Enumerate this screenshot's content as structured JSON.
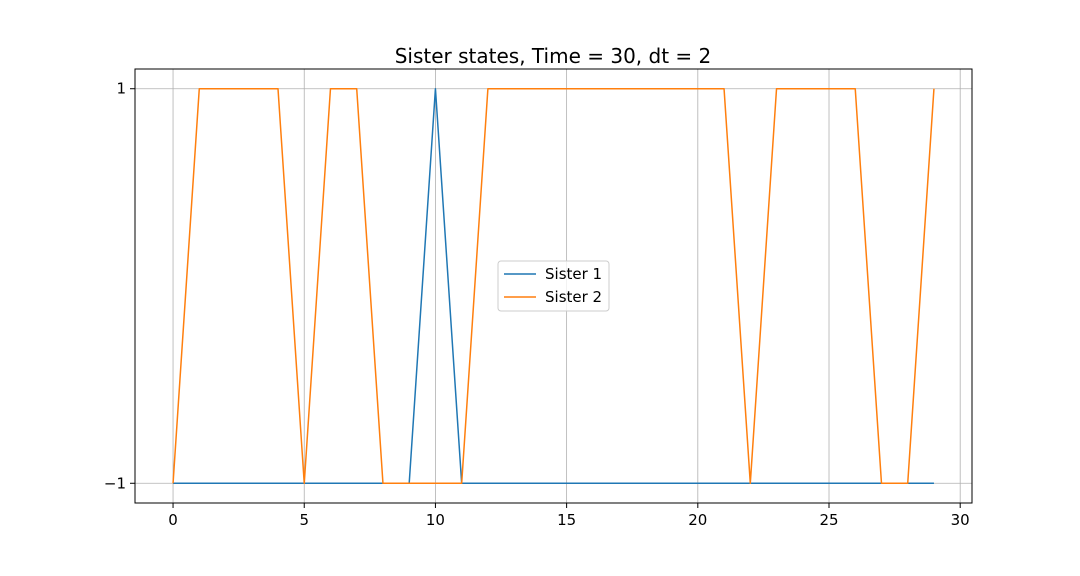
{
  "chart_data": {
    "type": "line",
    "title": "Sister states, Time = 30, dt = 2",
    "xlabel": "",
    "ylabel": "",
    "xlim": [
      -1.45,
      30.45
    ],
    "ylim": [
      -1.1,
      1.1
    ],
    "x_ticks": [
      0,
      5,
      10,
      15,
      20,
      25,
      30
    ],
    "x_tick_labels": [
      "0",
      "5",
      "10",
      "15",
      "20",
      "25",
      "30"
    ],
    "y_ticks": [
      -1,
      1
    ],
    "y_tick_labels": [
      "−1",
      "1"
    ],
    "grid": true,
    "legend_position": "center",
    "x": [
      0,
      1,
      2,
      3,
      4,
      5,
      6,
      7,
      8,
      9,
      10,
      11,
      12,
      13,
      14,
      15,
      16,
      17,
      18,
      19,
      20,
      21,
      22,
      23,
      24,
      25,
      26,
      27,
      28,
      29
    ],
    "series": [
      {
        "name": "Sister 1",
        "color": "#1f77b4",
        "values": [
          -1,
          -1,
          -1,
          -1,
          -1,
          -1,
          -1,
          -1,
          -1,
          -1,
          1,
          -1,
          -1,
          -1,
          -1,
          -1,
          -1,
          -1,
          -1,
          -1,
          -1,
          -1,
          -1,
          -1,
          -1,
          -1,
          -1,
          -1,
          -1,
          -1
        ]
      },
      {
        "name": "Sister 2",
        "color": "#ff7f0e",
        "values": [
          -1,
          1,
          1,
          1,
          1,
          -1,
          1,
          1,
          -1,
          -1,
          -1,
          -1,
          1,
          1,
          1,
          1,
          1,
          1,
          1,
          1,
          1,
          1,
          -1,
          1,
          1,
          1,
          1,
          -1,
          -1,
          1
        ]
      }
    ]
  }
}
